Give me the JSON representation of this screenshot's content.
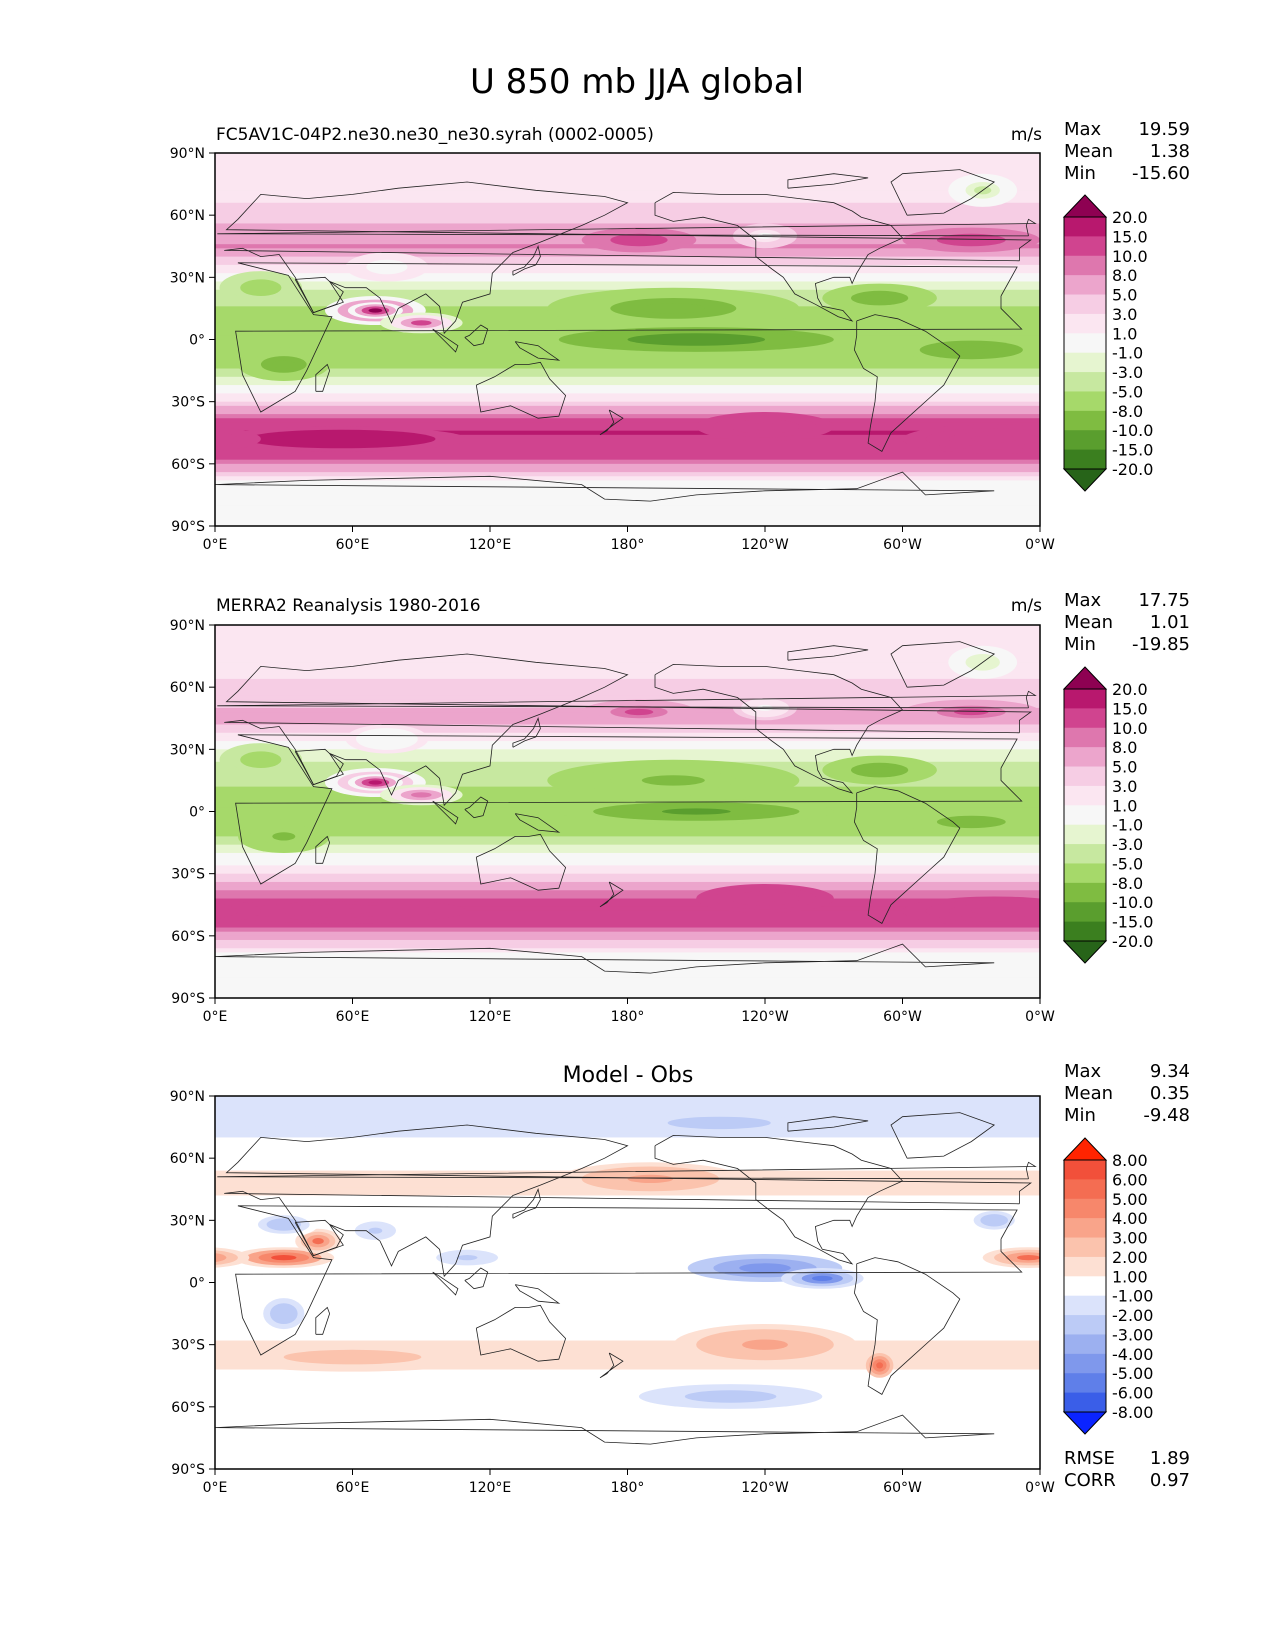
{
  "suptitle": "U 850 mb JJA global",
  "xticks": [
    "0°E",
    "60°E",
    "120°E",
    "180°",
    "120°W",
    "60°W",
    "0°W"
  ],
  "yticks": [
    "90°N",
    "60°N",
    "30°N",
    "0°",
    "30°S",
    "60°S",
    "90°S"
  ],
  "panels": [
    {
      "left_title": "FC5AV1C-04P2.ne30.ne30_ne30.syrah (0002-0005)",
      "center_title": "",
      "units": "m/s",
      "stats": [
        {
          "label": "Max",
          "value": "19.59"
        },
        {
          "label": "Mean",
          "value": "1.38"
        },
        {
          "label": "Min",
          "value": "-15.60"
        }
      ],
      "levels": [
        "20.0",
        "15.0",
        "10.0",
        "8.0",
        "5.0",
        "3.0",
        "1.0",
        "-1.0",
        "-3.0",
        "-5.0",
        "-8.0",
        "-10.0",
        "-15.0",
        "-20.0"
      ],
      "colormap": [
        "#8e0152",
        "#b8186e",
        "#d0448f",
        "#de77ae",
        "#eca5cc",
        "#f6cde4",
        "#fbe6f1",
        "#f7f7f7",
        "#e6f5d0",
        "#c7e8a0",
        "#a6d96a",
        "#7fbc41",
        "#5a9e2e",
        "#3b7f1f",
        "#276419"
      ],
      "chart_data": {
        "type": "heatmap",
        "field": "u850",
        "lon_range": [
          0,
          360
        ],
        "lat_range": [
          -90,
          90
        ],
        "bands": [
          {
            "lat": 75,
            "value": 1.5
          },
          {
            "lat": 55,
            "value": 5
          },
          {
            "lat": 45,
            "value": 8
          },
          {
            "lat": 25,
            "value": -3
          },
          {
            "lat": 12,
            "value": -6
          },
          {
            "lat": 0,
            "value": -8
          },
          {
            "lat": -12,
            "value": -6
          },
          {
            "lat": -30,
            "value": 3
          },
          {
            "lat": -45,
            "value": 15
          },
          {
            "lat": -55,
            "value": 12
          },
          {
            "lat": -68,
            "value": 1
          },
          {
            "lat": -80,
            "value": 0
          }
        ]
      }
    },
    {
      "left_title": "MERRA2 Reanalysis 1980-2016",
      "center_title": "",
      "units": "m/s",
      "stats": [
        {
          "label": "Max",
          "value": "17.75"
        },
        {
          "label": "Mean",
          "value": "1.01"
        },
        {
          "label": "Min",
          "value": "-19.85"
        }
      ],
      "levels": [
        "20.0",
        "15.0",
        "10.0",
        "8.0",
        "5.0",
        "3.0",
        "1.0",
        "-1.0",
        "-3.0",
        "-5.0",
        "-8.0",
        "-10.0",
        "-15.0",
        "-20.0"
      ],
      "colormap": [
        "#8e0152",
        "#b8186e",
        "#d0448f",
        "#de77ae",
        "#eca5cc",
        "#f6cde4",
        "#fbe6f1",
        "#f7f7f7",
        "#e6f5d0",
        "#c7e8a0",
        "#a6d96a",
        "#7fbc41",
        "#5a9e2e",
        "#3b7f1f",
        "#276419"
      ],
      "chart_data": {
        "type": "heatmap",
        "field": "u850",
        "lon_range": [
          0,
          360
        ],
        "lat_range": [
          -90,
          90
        ],
        "bands": [
          {
            "lat": 75,
            "value": 1.5
          },
          {
            "lat": 55,
            "value": 4
          },
          {
            "lat": 45,
            "value": 6
          },
          {
            "lat": 25,
            "value": -3
          },
          {
            "lat": 12,
            "value": -5
          },
          {
            "lat": 0,
            "value": -6
          },
          {
            "lat": -12,
            "value": -5
          },
          {
            "lat": -30,
            "value": 3
          },
          {
            "lat": -45,
            "value": 12
          },
          {
            "lat": -55,
            "value": 10
          },
          {
            "lat": -68,
            "value": 1
          },
          {
            "lat": -80,
            "value": 0
          }
        ]
      }
    },
    {
      "left_title": "",
      "center_title": "Model - Obs",
      "units": "",
      "stats": [
        {
          "label": "Max",
          "value": "9.34"
        },
        {
          "label": "Mean",
          "value": "0.35"
        },
        {
          "label": "Min",
          "value": "-9.48"
        }
      ],
      "extra_stats": [
        {
          "label": "RMSE",
          "value": "1.89"
        },
        {
          "label": "CORR",
          "value": "0.97"
        }
      ],
      "levels": [
        "8.00",
        "6.00",
        "5.00",
        "4.00",
        "3.00",
        "2.00",
        "1.00",
        "-1.00",
        "-2.00",
        "-3.00",
        "-4.00",
        "-5.00",
        "-6.00",
        "-8.00"
      ],
      "colormap": [
        "#ff2400",
        "#f2503a",
        "#f46d52",
        "#f7876b",
        "#f9a48a",
        "#fbc3ad",
        "#fde0d3",
        "#ffffff",
        "#dbe3fb",
        "#bccbf6",
        "#9cb0f0",
        "#7f98ec",
        "#5f7fe9",
        "#3a5ee8",
        "#0a24ff"
      ],
      "chart_data": {
        "type": "heatmap",
        "field": "u850_diff",
        "lon_range": [
          0,
          360
        ],
        "lat_range": [
          -90,
          90
        ],
        "bands": [
          {
            "lat": 75,
            "value": -1.5
          },
          {
            "lat": 50,
            "value": 1.5
          },
          {
            "lat": 25,
            "value": 0
          },
          {
            "lat": 10,
            "value": 0.5
          },
          {
            "lat": 0,
            "value": 0
          },
          {
            "lat": -20,
            "value": 0.5
          },
          {
            "lat": -38,
            "value": 1.5
          },
          {
            "lat": -55,
            "value": -0.5
          },
          {
            "lat": -65,
            "value": 0.5
          },
          {
            "lat": -80,
            "value": 0
          }
        ]
      }
    }
  ]
}
